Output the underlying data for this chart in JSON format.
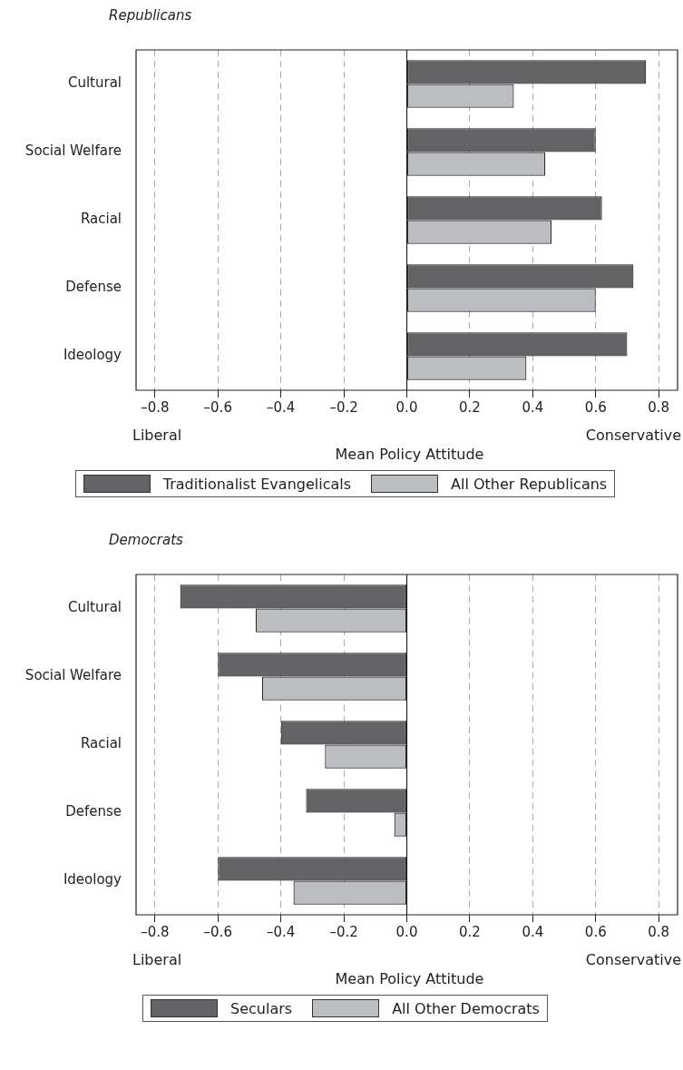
{
  "chart_data": [
    {
      "type": "bar",
      "orientation": "horizontal",
      "title": "Republicans",
      "xlabel": "Mean Policy Attitude",
      "annotations": [
        "Liberal",
        "Conservative"
      ],
      "categories": [
        "Cultural",
        "Social Welfare",
        "Racial",
        "Defense",
        "Ideology"
      ],
      "series": [
        {
          "name": "Traditionalist Evangelicals",
          "color": "#636365",
          "values": [
            0.76,
            0.6,
            0.62,
            0.72,
            0.7
          ]
        },
        {
          "name": "All Other Republicans",
          "color": "#bcbdc0",
          "values": [
            0.34,
            0.44,
            0.46,
            0.6,
            0.38
          ]
        }
      ],
      "xlim": [
        -0.86,
        0.86
      ],
      "xticks": [
        {
          "value": -0.8,
          "label": "–0.8"
        },
        {
          "value": -0.6,
          "label": "–0.6"
        },
        {
          "value": -0.4,
          "label": "–0.4"
        },
        {
          "value": -0.2,
          "label": "–0.2"
        },
        {
          "value": 0,
          "label": "0.0"
        },
        {
          "value": 0.2,
          "label": "0.2"
        },
        {
          "value": 0.4,
          "label": "0.4"
        },
        {
          "value": 0.6,
          "label": "0.6"
        },
        {
          "value": 0.8,
          "label": "0.8"
        }
      ],
      "ref_lines": [
        {
          "axis": "x",
          "value": 0,
          "line_style": "solid"
        }
      ],
      "grid": "x",
      "legend": "bottom"
    },
    {
      "type": "bar",
      "orientation": "horizontal",
      "title": "Democrats",
      "xlabel": "Mean Policy Attitude",
      "annotations": [
        "Liberal",
        "Conservative"
      ],
      "categories": [
        "Cultural",
        "Social Welfare",
        "Racial",
        "Defense",
        "Ideology"
      ],
      "series": [
        {
          "name": "Seculars",
          "color": "#636365",
          "values": [
            -0.72,
            -0.6,
            -0.4,
            -0.32,
            -0.6
          ]
        },
        {
          "name": "All Other Democrats",
          "color": "#bcbdc0",
          "values": [
            -0.48,
            -0.46,
            -0.26,
            -0.04,
            -0.36
          ]
        }
      ],
      "xlim": [
        -0.86,
        0.86
      ],
      "xticks": [
        {
          "value": -0.8,
          "label": "–0.8"
        },
        {
          "value": -0.6,
          "label": "–0.6"
        },
        {
          "value": -0.4,
          "label": "–0.4"
        },
        {
          "value": -0.2,
          "label": "–0.2"
        },
        {
          "value": 0,
          "label": "0.0"
        },
        {
          "value": 0.2,
          "label": "0.2"
        },
        {
          "value": 0.4,
          "label": "0.4"
        },
        {
          "value": 0.6,
          "label": "0.6"
        },
        {
          "value": 0.8,
          "label": "0.8"
        }
      ],
      "ref_lines": [
        {
          "axis": "x",
          "value": 0,
          "line_style": "solid"
        }
      ],
      "grid": "x",
      "legend": "bottom"
    }
  ]
}
